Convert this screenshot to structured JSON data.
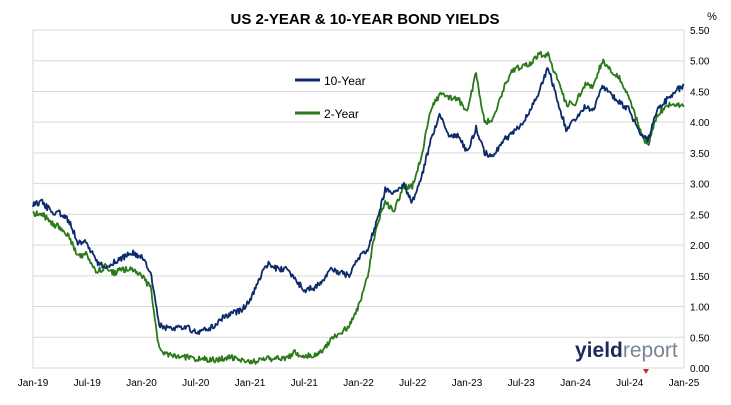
{
  "chart_data": {
    "type": "line",
    "title": "US 2-YEAR & 10-YEAR BOND YIELDS",
    "y_unit_label": "%",
    "ylim": [
      0,
      5.5
    ],
    "y_ticks": [
      "0.00",
      "0.50",
      "1.00",
      "1.50",
      "2.00",
      "2.50",
      "3.00",
      "3.50",
      "4.00",
      "4.50",
      "5.00",
      "5.50"
    ],
    "x_ticks": [
      "Jan-19",
      "Jul-19",
      "Jan-20",
      "Jul-20",
      "Jan-21",
      "Jul-21",
      "Jan-22",
      "Jul-22",
      "Jan-23",
      "Jul-23",
      "Jan-24",
      "Jul-24",
      "Jan-25"
    ],
    "y_axis_position": "right",
    "grid": "horizontal",
    "legend_placement": "top-center",
    "series": [
      {
        "name": "10-Year",
        "color": "#0d2a6b",
        "points": [
          [
            "2019-01-01",
            2.66
          ],
          [
            "2019-02-01",
            2.7
          ],
          [
            "2019-03-01",
            2.55
          ],
          [
            "2019-04-01",
            2.52
          ],
          [
            "2019-05-01",
            2.4
          ],
          [
            "2019-06-01",
            2.05
          ],
          [
            "2019-07-01",
            2.06
          ],
          [
            "2019-08-01",
            1.72
          ],
          [
            "2019-09-01",
            1.65
          ],
          [
            "2019-10-01",
            1.73
          ],
          [
            "2019-11-01",
            1.8
          ],
          [
            "2019-12-01",
            1.88
          ],
          [
            "2020-01-01",
            1.8
          ],
          [
            "2020-02-01",
            1.55
          ],
          [
            "2020-03-01",
            0.7
          ],
          [
            "2020-04-01",
            0.64
          ],
          [
            "2020-05-01",
            0.66
          ],
          [
            "2020-06-01",
            0.68
          ],
          [
            "2020-07-01",
            0.58
          ],
          [
            "2020-08-01",
            0.62
          ],
          [
            "2020-09-01",
            0.68
          ],
          [
            "2020-10-01",
            0.82
          ],
          [
            "2020-11-01",
            0.9
          ],
          [
            "2020-12-01",
            0.93
          ],
          [
            "2021-01-01",
            1.1
          ],
          [
            "2021-02-01",
            1.45
          ],
          [
            "2021-03-01",
            1.7
          ],
          [
            "2021-04-01",
            1.62
          ],
          [
            "2021-05-01",
            1.6
          ],
          [
            "2021-06-01",
            1.45
          ],
          [
            "2021-07-01",
            1.27
          ],
          [
            "2021-08-01",
            1.3
          ],
          [
            "2021-09-01",
            1.4
          ],
          [
            "2021-10-01",
            1.6
          ],
          [
            "2021-11-01",
            1.55
          ],
          [
            "2021-12-01",
            1.5
          ],
          [
            "2022-01-01",
            1.78
          ],
          [
            "2022-02-01",
            1.95
          ],
          [
            "2022-03-01",
            2.35
          ],
          [
            "2022-04-01",
            2.9
          ],
          [
            "2022-05-01",
            2.85
          ],
          [
            "2022-06-01",
            3.0
          ],
          [
            "2022-07-01",
            2.7
          ],
          [
            "2022-08-01",
            3.1
          ],
          [
            "2022-09-01",
            3.7
          ],
          [
            "2022-10-01",
            4.15
          ],
          [
            "2022-11-01",
            3.75
          ],
          [
            "2022-12-01",
            3.8
          ],
          [
            "2023-01-01",
            3.5
          ],
          [
            "2023-02-01",
            3.9
          ],
          [
            "2023-03-01",
            3.5
          ],
          [
            "2023-04-01",
            3.45
          ],
          [
            "2023-05-01",
            3.7
          ],
          [
            "2023-06-01",
            3.8
          ],
          [
            "2023-07-01",
            3.95
          ],
          [
            "2023-08-01",
            4.2
          ],
          [
            "2023-09-01",
            4.5
          ],
          [
            "2023-10-01",
            4.9
          ],
          [
            "2023-11-01",
            4.35
          ],
          [
            "2023-12-01",
            3.9
          ],
          [
            "2024-01-01",
            4.05
          ],
          [
            "2024-02-01",
            4.25
          ],
          [
            "2024-03-01",
            4.2
          ],
          [
            "2024-04-01",
            4.6
          ],
          [
            "2024-05-01",
            4.45
          ],
          [
            "2024-06-01",
            4.3
          ],
          [
            "2024-07-01",
            4.2
          ],
          [
            "2024-08-01",
            3.85
          ],
          [
            "2024-09-01",
            3.7
          ],
          [
            "2024-10-01",
            4.2
          ],
          [
            "2024-11-01",
            4.35
          ],
          [
            "2024-12-01",
            4.5
          ],
          [
            "2025-01-01",
            4.6
          ]
        ]
      },
      {
        "name": "2-Year",
        "color": "#2a7a1a",
        "points": [
          [
            "2019-01-01",
            2.5
          ],
          [
            "2019-02-01",
            2.52
          ],
          [
            "2019-03-01",
            2.35
          ],
          [
            "2019-04-01",
            2.3
          ],
          [
            "2019-05-01",
            2.15
          ],
          [
            "2019-06-01",
            1.8
          ],
          [
            "2019-07-01",
            1.85
          ],
          [
            "2019-08-01",
            1.55
          ],
          [
            "2019-09-01",
            1.65
          ],
          [
            "2019-10-01",
            1.55
          ],
          [
            "2019-11-01",
            1.6
          ],
          [
            "2019-12-01",
            1.6
          ],
          [
            "2020-01-01",
            1.5
          ],
          [
            "2020-02-01",
            1.3
          ],
          [
            "2020-03-01",
            0.3
          ],
          [
            "2020-04-01",
            0.22
          ],
          [
            "2020-05-01",
            0.17
          ],
          [
            "2020-06-01",
            0.18
          ],
          [
            "2020-07-01",
            0.15
          ],
          [
            "2020-08-01",
            0.14
          ],
          [
            "2020-09-01",
            0.13
          ],
          [
            "2020-10-01",
            0.15
          ],
          [
            "2020-11-01",
            0.17
          ],
          [
            "2020-12-01",
            0.12
          ],
          [
            "2021-01-01",
            0.12
          ],
          [
            "2021-02-01",
            0.11
          ],
          [
            "2021-03-01",
            0.15
          ],
          [
            "2021-04-01",
            0.16
          ],
          [
            "2021-05-01",
            0.15
          ],
          [
            "2021-06-01",
            0.25
          ],
          [
            "2021-07-01",
            0.2
          ],
          [
            "2021-08-01",
            0.22
          ],
          [
            "2021-09-01",
            0.28
          ],
          [
            "2021-10-01",
            0.48
          ],
          [
            "2021-11-01",
            0.55
          ],
          [
            "2021-12-01",
            0.7
          ],
          [
            "2022-01-01",
            1.0
          ],
          [
            "2022-02-01",
            1.5
          ],
          [
            "2022-03-01",
            2.3
          ],
          [
            "2022-04-01",
            2.7
          ],
          [
            "2022-05-01",
            2.55
          ],
          [
            "2022-06-01",
            2.95
          ],
          [
            "2022-07-01",
            2.95
          ],
          [
            "2022-08-01",
            3.45
          ],
          [
            "2022-09-01",
            4.2
          ],
          [
            "2022-10-01",
            4.45
          ],
          [
            "2022-11-01",
            4.4
          ],
          [
            "2022-12-01",
            4.4
          ],
          [
            "2023-01-01",
            4.15
          ],
          [
            "2023-02-01",
            4.8
          ],
          [
            "2023-03-01",
            4.0
          ],
          [
            "2023-04-01",
            4.05
          ],
          [
            "2023-05-01",
            4.5
          ],
          [
            "2023-06-01",
            4.85
          ],
          [
            "2023-07-01",
            4.9
          ],
          [
            "2023-08-01",
            4.95
          ],
          [
            "2023-09-01",
            5.1
          ],
          [
            "2023-10-01",
            5.1
          ],
          [
            "2023-11-01",
            4.7
          ],
          [
            "2023-12-01",
            4.3
          ],
          [
            "2024-01-01",
            4.3
          ],
          [
            "2024-02-01",
            4.6
          ],
          [
            "2024-03-01",
            4.6
          ],
          [
            "2024-04-01",
            5.0
          ],
          [
            "2024-05-01",
            4.85
          ],
          [
            "2024-06-01",
            4.7
          ],
          [
            "2024-07-01",
            4.4
          ],
          [
            "2024-08-01",
            3.95
          ],
          [
            "2024-09-01",
            3.6
          ],
          [
            "2024-10-01",
            4.1
          ],
          [
            "2024-11-01",
            4.25
          ],
          [
            "2024-12-01",
            4.3
          ],
          [
            "2025-01-01",
            4.25
          ]
        ]
      }
    ]
  },
  "branding": {
    "logo_text_bold": "yield",
    "logo_text_light": "report"
  }
}
